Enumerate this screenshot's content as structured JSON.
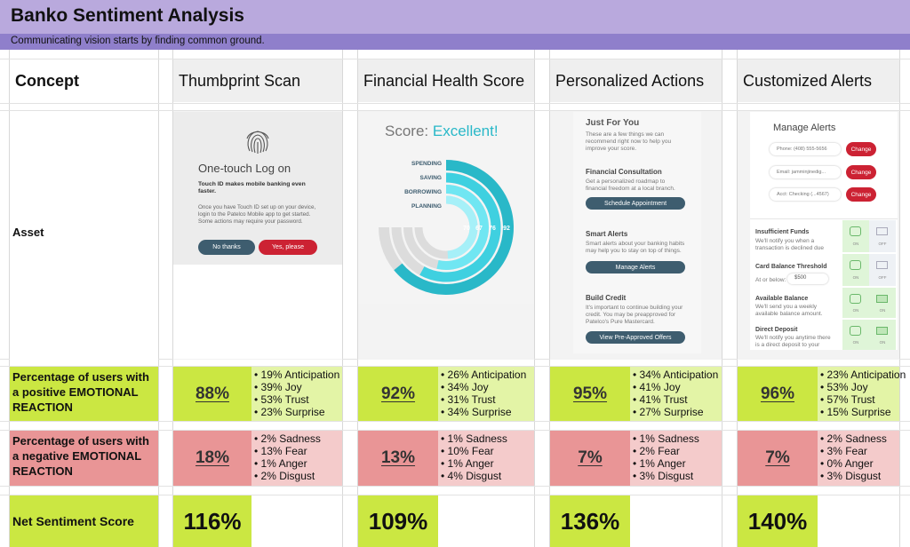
{
  "header": {
    "title": "Banko Sentiment Analysis",
    "subtitle": "Communicating vision starts by finding common ground."
  },
  "table": {
    "concept_label": "Concept",
    "asset_label": "Asset",
    "positive_label": "Percentage of users with a positive EMOTIONAL REACTION",
    "negative_label": "Percentage of users with a negative EMOTIONAL REACTION",
    "net_label": "Net Sentiment Score",
    "concepts": [
      {
        "name": "Thumbprint Scan",
        "positive_pct": "88%",
        "positive": [
          "19% Anticipation",
          "39% Joy",
          "53% Trust",
          "23% Surprise"
        ],
        "negative_pct": "18%",
        "negative": [
          "2% Sadness",
          "13% Fear",
          "1% Anger",
          "2% Disgust"
        ],
        "net": "116%"
      },
      {
        "name": "Financial Health Score",
        "positive_pct": "92%",
        "positive": [
          "26% Anticipation",
          "34% Joy",
          "31% Trust",
          "34% Surprise"
        ],
        "negative_pct": "13%",
        "negative": [
          "1% Sadness",
          "10% Fear",
          "1% Anger",
          "4% Disgust"
        ],
        "net": "109%"
      },
      {
        "name": "Personalized Actions",
        "positive_pct": "95%",
        "positive": [
          "34% Anticipation",
          "41% Joy",
          "41% Trust",
          "27% Surprise"
        ],
        "negative_pct": "7%",
        "negative": [
          "1% Sadness",
          "2% Fear",
          "1% Anger",
          "3% Disgust"
        ],
        "net": "136%"
      },
      {
        "name": "Customized Alerts",
        "positive_pct": "96%",
        "positive": [
          "23% Anticipation",
          "53% Joy",
          "57% Trust",
          "15% Surprise"
        ],
        "negative_pct": "7%",
        "negative": [
          "2% Sadness",
          "3% Fear",
          "0% Anger",
          "3% Disgust"
        ],
        "net": "140%"
      }
    ]
  },
  "mock_thumbprint": {
    "heading": "One-touch Log on",
    "bold_text": "Touch ID makes mobile banking even faster.",
    "body": "Once you have Touch ID set up on your device, login to the Patelco Mobile app to get started. Some actions may require your password.",
    "no_button": "No thanks",
    "yes_button": "Yes, please"
  },
  "mock_score": {
    "score_label": "Score:",
    "score_value": "Excellent!",
    "categories": [
      "SPENDING",
      "SAVING",
      "BORROWING",
      "PLANNING"
    ],
    "values": [
      "92",
      "76",
      "67",
      "70"
    ]
  },
  "mock_actions": {
    "title": "Just For You",
    "intro": "These are a few things we can recommend right now to help you improve your score.",
    "sections": [
      {
        "title": "Financial Consultation",
        "text": "Get a personalized roadmap to financial freedom at a local branch.",
        "button": "Schedule Appointment"
      },
      {
        "title": "Smart Alerts",
        "text": "Smart alerts about your banking habits may help you to stay on top of things.",
        "button": "Manage Alerts"
      },
      {
        "title": "Build Credit",
        "text": "It's important to continue building your credit. You may be preapproved for Patelco's Pure Mastercard.",
        "button": "View Pre-Approved Offers"
      }
    ]
  },
  "mock_alerts": {
    "title": "Manage Alerts",
    "fields": [
      "Phone: (408) 555-5656",
      "Email: jamminjinedig...",
      "Acct: Checking (...4567)"
    ],
    "change_label": "Change",
    "rows": [
      {
        "title": "Insufficient Funds",
        "text": "We'll notify you when a transaction is declined due",
        "on": "ON",
        "off": "OFF"
      },
      {
        "title": "Card Balance Threshold",
        "text": "At or below:",
        "amount": "$500",
        "on": "ON",
        "off": "OFF"
      },
      {
        "title": "Available Balance",
        "text": "We'll send you a weekly available balance amount.",
        "on": "ON",
        "off": "ON"
      },
      {
        "title": "Direct Deposit",
        "text": "We'll notify you anytime there is a direct deposit to your",
        "on": "ON",
        "off": "ON"
      }
    ]
  },
  "colors": {
    "title_bar": "#b9a9dd",
    "subtitle_bar": "#8f7fcb",
    "positive": "#cbe742",
    "positive_light": "#e3f4a6",
    "negative": "#e99596",
    "negative_light": "#f4cbcb",
    "accent_cyan": "#29b8c8",
    "button_dark": "#3e5d6f",
    "button_red": "#cc2233"
  }
}
